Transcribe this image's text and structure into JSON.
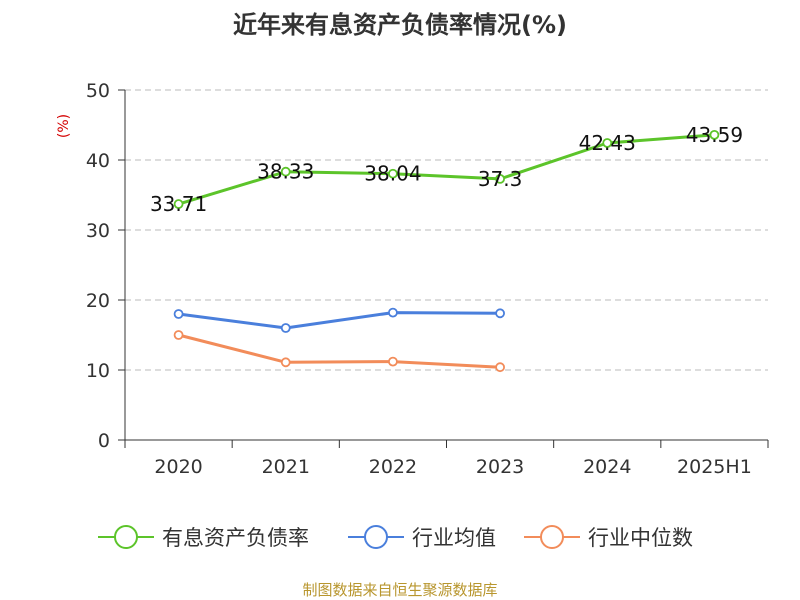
{
  "chart_data": {
    "type": "line",
    "title": "近年来有息资产负债率情况(%)",
    "ylabel": "(%)",
    "xlabel": "",
    "categories": [
      "2020",
      "2021",
      "2022",
      "2023",
      "2024",
      "2025H1"
    ],
    "ylim": [
      0,
      50
    ],
    "yticks": [
      0,
      10,
      20,
      30,
      40,
      50
    ],
    "grid": true,
    "legend_position": "bottom",
    "series": [
      {
        "name": "有息资产负债率",
        "color": "#5cc42a",
        "values": [
          33.71,
          38.33,
          38.04,
          37.3,
          42.43,
          43.59
        ],
        "labels": [
          "33.71",
          "38.33",
          "38.04",
          "37.3",
          "42.43",
          "43.59"
        ]
      },
      {
        "name": "行业均值",
        "color": "#4a7fdc",
        "values": [
          18.0,
          16.0,
          18.2,
          18.1,
          null,
          null
        ]
      },
      {
        "name": "行业中位数",
        "color": "#f28c5a",
        "values": [
          15.0,
          11.1,
          11.2,
          10.4,
          null,
          null
        ]
      }
    ]
  },
  "source": "制图数据来自恒生聚源数据库"
}
